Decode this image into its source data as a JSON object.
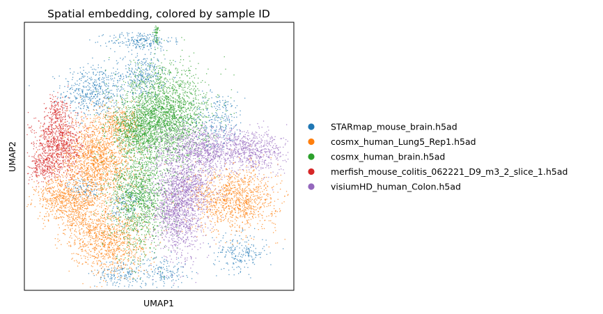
{
  "chart_data": {
    "type": "scatter",
    "title": "Spatial embedding, colored by sample ID",
    "xlabel": "UMAP1",
    "ylabel": "UMAP2",
    "grid": false,
    "ticks": false,
    "legend_placement": "right",
    "series": [
      {
        "name": "STARmap_mouse_brain.h5ad",
        "color": "#1f77b4",
        "clusters": [
          {
            "x": 0.26,
            "y": 0.74,
            "sx": 0.06,
            "sy": 0.05,
            "n": 500
          },
          {
            "x": 0.44,
            "y": 0.8,
            "sx": 0.04,
            "sy": 0.04,
            "n": 280
          },
          {
            "x": 0.43,
            "y": 0.93,
            "sx": 0.06,
            "sy": 0.018,
            "n": 220
          },
          {
            "x": 0.72,
            "y": 0.64,
            "sx": 0.05,
            "sy": 0.05,
            "n": 240
          },
          {
            "x": 0.8,
            "y": 0.14,
            "sx": 0.05,
            "sy": 0.035,
            "n": 200
          },
          {
            "x": 0.36,
            "y": 0.06,
            "sx": 0.05,
            "sy": 0.03,
            "n": 180
          },
          {
            "x": 0.52,
            "y": 0.07,
            "sx": 0.04,
            "sy": 0.03,
            "n": 140
          },
          {
            "x": 0.22,
            "y": 0.38,
            "sx": 0.03,
            "sy": 0.02,
            "n": 90
          },
          {
            "x": 0.38,
            "y": 0.32,
            "sx": 0.03,
            "sy": 0.04,
            "n": 120
          }
        ]
      },
      {
        "name": "cosmx_human_Lung5_Rep1.h5ad",
        "color": "#ff7f0e",
        "clusters": [
          {
            "x": 0.27,
            "y": 0.48,
            "sx": 0.07,
            "sy": 0.08,
            "n": 1600
          },
          {
            "x": 0.14,
            "y": 0.34,
            "sx": 0.05,
            "sy": 0.04,
            "n": 500
          },
          {
            "x": 0.78,
            "y": 0.34,
            "sx": 0.08,
            "sy": 0.06,
            "n": 1100
          },
          {
            "x": 0.32,
            "y": 0.18,
            "sx": 0.07,
            "sy": 0.06,
            "n": 850
          },
          {
            "x": 0.22,
            "y": 0.27,
            "sx": 0.05,
            "sy": 0.06,
            "n": 400
          },
          {
            "x": 0.36,
            "y": 0.62,
            "sx": 0.04,
            "sy": 0.03,
            "n": 250
          }
        ]
      },
      {
        "name": "cosmx_human_brain.h5ad",
        "color": "#2ca02c",
        "clusters": [
          {
            "x": 0.52,
            "y": 0.65,
            "sx": 0.08,
            "sy": 0.09,
            "n": 2400
          },
          {
            "x": 0.43,
            "y": 0.35,
            "sx": 0.055,
            "sy": 0.1,
            "n": 1300
          },
          {
            "x": 0.41,
            "y": 0.6,
            "sx": 0.05,
            "sy": 0.04,
            "n": 500
          },
          {
            "x": 0.49,
            "y": 0.96,
            "sx": 0.004,
            "sy": 0.025,
            "n": 60
          }
        ]
      },
      {
        "name": "merfish_mouse_colitis_062221_D9_m3_2_slice_1.h5ad",
        "color": "#d62728",
        "clusters": [
          {
            "x": 0.13,
            "y": 0.55,
            "sx": 0.045,
            "sy": 0.055,
            "n": 850
          },
          {
            "x": 0.07,
            "y": 0.46,
            "sx": 0.03,
            "sy": 0.03,
            "n": 250
          },
          {
            "x": 0.12,
            "y": 0.67,
            "sx": 0.02,
            "sy": 0.03,
            "n": 150
          }
        ]
      },
      {
        "name": "visiumHD_human_Colon.h5ad",
        "color": "#9467bd",
        "clusters": [
          {
            "x": 0.57,
            "y": 0.3,
            "sx": 0.05,
            "sy": 0.09,
            "n": 1300
          },
          {
            "x": 0.67,
            "y": 0.53,
            "sx": 0.09,
            "sy": 0.04,
            "n": 1000
          },
          {
            "x": 0.86,
            "y": 0.52,
            "sx": 0.06,
            "sy": 0.04,
            "n": 450
          },
          {
            "x": 0.62,
            "y": 0.4,
            "sx": 0.05,
            "sy": 0.05,
            "n": 400
          }
        ]
      }
    ]
  }
}
